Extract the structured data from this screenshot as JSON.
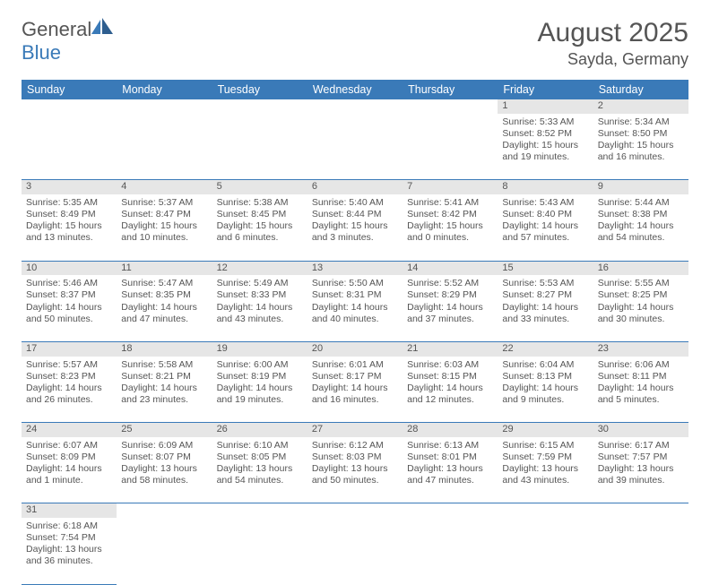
{
  "logo": {
    "gen": "General",
    "blue": "Blue"
  },
  "title": {
    "month": "August 2025",
    "location": "Sayda, Germany"
  },
  "colors": {
    "header_bg": "#3a7ab8",
    "daynum_bg": "#e6e6e6",
    "text": "#555555",
    "row_border": "#3a7ab8"
  },
  "dayHeaders": [
    "Sunday",
    "Monday",
    "Tuesday",
    "Wednesday",
    "Thursday",
    "Friday",
    "Saturday"
  ],
  "weeks": [
    [
      null,
      null,
      null,
      null,
      null,
      {
        "n": "1",
        "sr": "Sunrise: 5:33 AM",
        "ss": "Sunset: 8:52 PM",
        "d1": "Daylight: 15 hours",
        "d2": "and 19 minutes."
      },
      {
        "n": "2",
        "sr": "Sunrise: 5:34 AM",
        "ss": "Sunset: 8:50 PM",
        "d1": "Daylight: 15 hours",
        "d2": "and 16 minutes."
      }
    ],
    [
      {
        "n": "3",
        "sr": "Sunrise: 5:35 AM",
        "ss": "Sunset: 8:49 PM",
        "d1": "Daylight: 15 hours",
        "d2": "and 13 minutes."
      },
      {
        "n": "4",
        "sr": "Sunrise: 5:37 AM",
        "ss": "Sunset: 8:47 PM",
        "d1": "Daylight: 15 hours",
        "d2": "and 10 minutes."
      },
      {
        "n": "5",
        "sr": "Sunrise: 5:38 AM",
        "ss": "Sunset: 8:45 PM",
        "d1": "Daylight: 15 hours",
        "d2": "and 6 minutes."
      },
      {
        "n": "6",
        "sr": "Sunrise: 5:40 AM",
        "ss": "Sunset: 8:44 PM",
        "d1": "Daylight: 15 hours",
        "d2": "and 3 minutes."
      },
      {
        "n": "7",
        "sr": "Sunrise: 5:41 AM",
        "ss": "Sunset: 8:42 PM",
        "d1": "Daylight: 15 hours",
        "d2": "and 0 minutes."
      },
      {
        "n": "8",
        "sr": "Sunrise: 5:43 AM",
        "ss": "Sunset: 8:40 PM",
        "d1": "Daylight: 14 hours",
        "d2": "and 57 minutes."
      },
      {
        "n": "9",
        "sr": "Sunrise: 5:44 AM",
        "ss": "Sunset: 8:38 PM",
        "d1": "Daylight: 14 hours",
        "d2": "and 54 minutes."
      }
    ],
    [
      {
        "n": "10",
        "sr": "Sunrise: 5:46 AM",
        "ss": "Sunset: 8:37 PM",
        "d1": "Daylight: 14 hours",
        "d2": "and 50 minutes."
      },
      {
        "n": "11",
        "sr": "Sunrise: 5:47 AM",
        "ss": "Sunset: 8:35 PM",
        "d1": "Daylight: 14 hours",
        "d2": "and 47 minutes."
      },
      {
        "n": "12",
        "sr": "Sunrise: 5:49 AM",
        "ss": "Sunset: 8:33 PM",
        "d1": "Daylight: 14 hours",
        "d2": "and 43 minutes."
      },
      {
        "n": "13",
        "sr": "Sunrise: 5:50 AM",
        "ss": "Sunset: 8:31 PM",
        "d1": "Daylight: 14 hours",
        "d2": "and 40 minutes."
      },
      {
        "n": "14",
        "sr": "Sunrise: 5:52 AM",
        "ss": "Sunset: 8:29 PM",
        "d1": "Daylight: 14 hours",
        "d2": "and 37 minutes."
      },
      {
        "n": "15",
        "sr": "Sunrise: 5:53 AM",
        "ss": "Sunset: 8:27 PM",
        "d1": "Daylight: 14 hours",
        "d2": "and 33 minutes."
      },
      {
        "n": "16",
        "sr": "Sunrise: 5:55 AM",
        "ss": "Sunset: 8:25 PM",
        "d1": "Daylight: 14 hours",
        "d2": "and 30 minutes."
      }
    ],
    [
      {
        "n": "17",
        "sr": "Sunrise: 5:57 AM",
        "ss": "Sunset: 8:23 PM",
        "d1": "Daylight: 14 hours",
        "d2": "and 26 minutes."
      },
      {
        "n": "18",
        "sr": "Sunrise: 5:58 AM",
        "ss": "Sunset: 8:21 PM",
        "d1": "Daylight: 14 hours",
        "d2": "and 23 minutes."
      },
      {
        "n": "19",
        "sr": "Sunrise: 6:00 AM",
        "ss": "Sunset: 8:19 PM",
        "d1": "Daylight: 14 hours",
        "d2": "and 19 minutes."
      },
      {
        "n": "20",
        "sr": "Sunrise: 6:01 AM",
        "ss": "Sunset: 8:17 PM",
        "d1": "Daylight: 14 hours",
        "d2": "and 16 minutes."
      },
      {
        "n": "21",
        "sr": "Sunrise: 6:03 AM",
        "ss": "Sunset: 8:15 PM",
        "d1": "Daylight: 14 hours",
        "d2": "and 12 minutes."
      },
      {
        "n": "22",
        "sr": "Sunrise: 6:04 AM",
        "ss": "Sunset: 8:13 PM",
        "d1": "Daylight: 14 hours",
        "d2": "and 9 minutes."
      },
      {
        "n": "23",
        "sr": "Sunrise: 6:06 AM",
        "ss": "Sunset: 8:11 PM",
        "d1": "Daylight: 14 hours",
        "d2": "and 5 minutes."
      }
    ],
    [
      {
        "n": "24",
        "sr": "Sunrise: 6:07 AM",
        "ss": "Sunset: 8:09 PM",
        "d1": "Daylight: 14 hours",
        "d2": "and 1 minute."
      },
      {
        "n": "25",
        "sr": "Sunrise: 6:09 AM",
        "ss": "Sunset: 8:07 PM",
        "d1": "Daylight: 13 hours",
        "d2": "and 58 minutes."
      },
      {
        "n": "26",
        "sr": "Sunrise: 6:10 AM",
        "ss": "Sunset: 8:05 PM",
        "d1": "Daylight: 13 hours",
        "d2": "and 54 minutes."
      },
      {
        "n": "27",
        "sr": "Sunrise: 6:12 AM",
        "ss": "Sunset: 8:03 PM",
        "d1": "Daylight: 13 hours",
        "d2": "and 50 minutes."
      },
      {
        "n": "28",
        "sr": "Sunrise: 6:13 AM",
        "ss": "Sunset: 8:01 PM",
        "d1": "Daylight: 13 hours",
        "d2": "and 47 minutes."
      },
      {
        "n": "29",
        "sr": "Sunrise: 6:15 AM",
        "ss": "Sunset: 7:59 PM",
        "d1": "Daylight: 13 hours",
        "d2": "and 43 minutes."
      },
      {
        "n": "30",
        "sr": "Sunrise: 6:17 AM",
        "ss": "Sunset: 7:57 PM",
        "d1": "Daylight: 13 hours",
        "d2": "and 39 minutes."
      }
    ],
    [
      {
        "n": "31",
        "sr": "Sunrise: 6:18 AM",
        "ss": "Sunset: 7:54 PM",
        "d1": "Daylight: 13 hours",
        "d2": "and 36 minutes."
      },
      null,
      null,
      null,
      null,
      null,
      null
    ]
  ]
}
